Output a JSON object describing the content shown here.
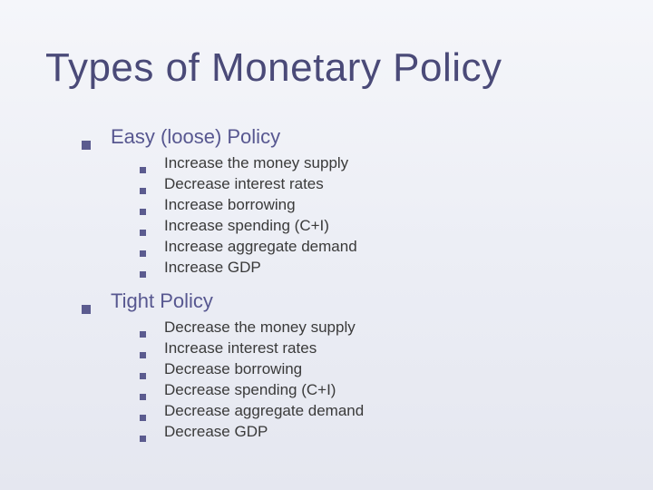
{
  "slide": {
    "title": "Types of Monetary Policy",
    "background_gradient": [
      "#f5f6fa",
      "#eceef5",
      "#e5e7f0"
    ],
    "title_color": "#4a4a78",
    "title_fontsize": 44,
    "bullet_color": "#5b5b8f",
    "level1_fontsize": 22,
    "level1_color": "#575790",
    "level2_fontsize": 17,
    "level2_color": "#3a3a3a",
    "sections": [
      {
        "heading": "Easy (loose) Policy",
        "items": [
          "Increase the money supply",
          "Decrease interest rates",
          "Increase borrowing",
          "Increase spending (C+I)",
          "Increase aggregate demand",
          "Increase GDP"
        ]
      },
      {
        "heading": "Tight Policy",
        "items": [
          "Decrease the money supply",
          "Increase interest rates",
          "Decrease borrowing",
          "Decrease spending (C+I)",
          "Decrease aggregate demand",
          "Decrease GDP"
        ]
      }
    ]
  }
}
